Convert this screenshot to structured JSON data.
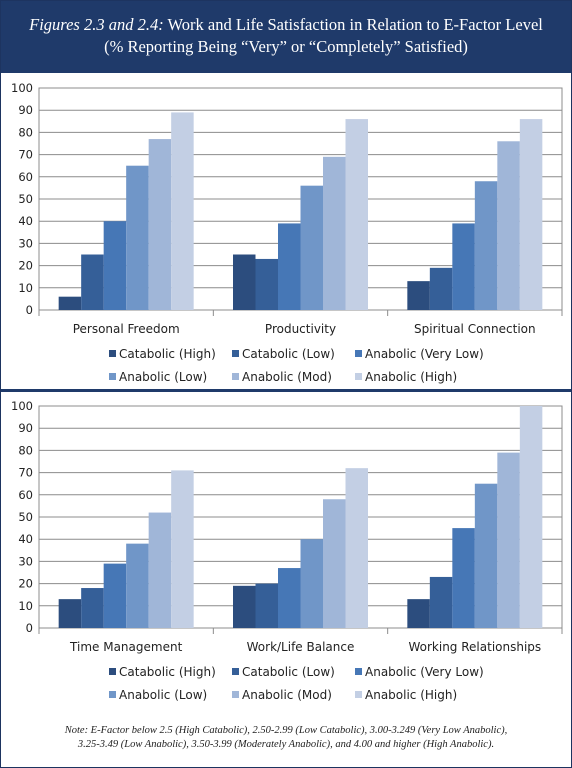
{
  "header": {
    "title_lead": "Figures 2.3 and 2.4:",
    "title_rest": "Work and Life Satisfaction in Relation to E-Factor Level",
    "subtitle": "(% Reporting Being “Very” or “Completely” Satisfied)"
  },
  "note": {
    "line1": "Note: E-Factor below 2.5 (High Catabolic), 2.50-2.99 (Low Catabolic), 3.00-3.249 (Very Low Anabolic),",
    "line2": "3.25-3.49 (Low Anabolic), 3.50-3.99 (Moderately Anabolic), and 4.00 and higher (High Anabolic)."
  },
  "chart_data": [
    {
      "type": "bar",
      "categories": [
        "Personal Freedom",
        "Productivity",
        "Spiritual Connection"
      ],
      "ylim": [
        0,
        100
      ],
      "yticks": [
        0,
        10,
        20,
        30,
        40,
        50,
        60,
        70,
        80,
        90,
        100
      ],
      "grid": true,
      "legend_position": "bottom",
      "series": [
        {
          "name": "Catabolic (High)",
          "color": "#2c4d7e",
          "values": [
            6,
            25,
            13
          ]
        },
        {
          "name": "Catabolic (Low)",
          "color": "#355f98",
          "values": [
            25,
            23,
            19
          ]
        },
        {
          "name": "Anabolic (Very Low)",
          "color": "#4677b6",
          "values": [
            40,
            39,
            39
          ]
        },
        {
          "name": "Anabolic (Low)",
          "color": "#7096c8",
          "values": [
            65,
            56,
            58
          ]
        },
        {
          "name": "Anabolic (Mod)",
          "color": "#a0b6d8",
          "values": [
            77,
            69,
            76
          ]
        },
        {
          "name": "Anabolic (High)",
          "color": "#c3cfe4",
          "values": [
            89,
            86,
            86
          ]
        }
      ]
    },
    {
      "type": "bar",
      "categories": [
        "Time Management",
        "Work/Life Balance",
        "Working Relationships"
      ],
      "ylim": [
        0,
        100
      ],
      "yticks": [
        0,
        10,
        20,
        30,
        40,
        50,
        60,
        70,
        80,
        90,
        100
      ],
      "grid": true,
      "legend_position": "bottom",
      "series": [
        {
          "name": "Catabolic (High)",
          "color": "#2c4d7e",
          "values": [
            13,
            19,
            13
          ]
        },
        {
          "name": "Catabolic (Low)",
          "color": "#355f98",
          "values": [
            18,
            20,
            23
          ]
        },
        {
          "name": "Anabolic (Very Low)",
          "color": "#4677b6",
          "values": [
            29,
            27,
            45
          ]
        },
        {
          "name": "Anabolic (Low)",
          "color": "#7096c8",
          "values": [
            38,
            40,
            65
          ]
        },
        {
          "name": "Anabolic (Mod)",
          "color": "#a0b6d8",
          "values": [
            52,
            58,
            79
          ]
        },
        {
          "name": "Anabolic (High)",
          "color": "#c3cfe4",
          "values": [
            71,
            72,
            100
          ]
        }
      ]
    }
  ]
}
